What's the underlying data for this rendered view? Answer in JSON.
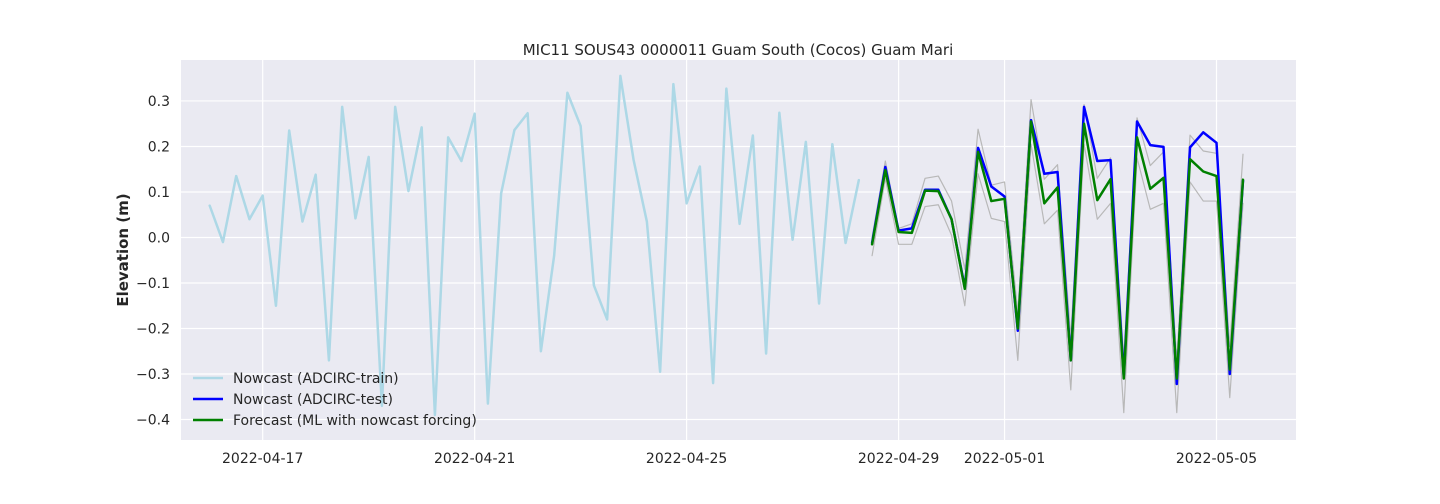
{
  "chart_data": {
    "type": "line",
    "title": "MIC11 SOUS43 0000011 Guam South (Cocos) Guam Mari",
    "xlabel": "",
    "ylabel": "Elevation (m)",
    "x_type": "date",
    "xlim": [
      "2022-04-15 11:00",
      "2022-05-06 12:00"
    ],
    "ylim": [
      -0.445,
      0.39
    ],
    "x_ticks": [
      "2022-04-17",
      "2022-04-21",
      "2022-04-25",
      "2022-04-29",
      "2022-05-01",
      "2022-05-05"
    ],
    "y_ticks": [
      0.3,
      0.2,
      0.1,
      0.0,
      -0.1,
      -0.2,
      -0.3,
      -0.4
    ],
    "y_tick_labels": [
      "0.3",
      "0.2",
      "0.1",
      "0.0",
      "−0.1",
      "−0.2",
      "−0.3",
      "−0.4"
    ],
    "grid": true,
    "legend_position": "lower-left",
    "series": [
      {
        "name": "Nowcast (ADCIRC-train)",
        "color": "#add8e6",
        "x": [
          "2022-04-16 00:00",
          "2022-04-16 06:00",
          "2022-04-16 12:00",
          "2022-04-16 18:00",
          "2022-04-17 00:00",
          "2022-04-17 06:00",
          "2022-04-17 12:00",
          "2022-04-17 18:00",
          "2022-04-18 00:00",
          "2022-04-18 06:00",
          "2022-04-18 12:00",
          "2022-04-18 18:00",
          "2022-04-19 00:00",
          "2022-04-19 06:00",
          "2022-04-19 12:00",
          "2022-04-19 18:00",
          "2022-04-20 00:00",
          "2022-04-20 06:00",
          "2022-04-20 12:00",
          "2022-04-20 18:00",
          "2022-04-21 00:00",
          "2022-04-21 06:00",
          "2022-04-21 12:00",
          "2022-04-21 18:00",
          "2022-04-22 00:00",
          "2022-04-22 06:00",
          "2022-04-22 12:00",
          "2022-04-22 18:00",
          "2022-04-23 00:00",
          "2022-04-23 06:00",
          "2022-04-23 12:00",
          "2022-04-23 18:00",
          "2022-04-24 00:00",
          "2022-04-24 06:00",
          "2022-04-24 12:00",
          "2022-04-24 18:00",
          "2022-04-25 00:00",
          "2022-04-25 06:00",
          "2022-04-25 12:00",
          "2022-04-25 18:00",
          "2022-04-26 00:00",
          "2022-04-26 06:00",
          "2022-04-26 12:00",
          "2022-04-26 18:00",
          "2022-04-27 00:00",
          "2022-04-27 06:00",
          "2022-04-27 12:00",
          "2022-04-27 18:00",
          "2022-04-28 00:00",
          "2022-04-28 06:00"
        ],
        "y": [
          0.07,
          -0.01,
          0.135,
          0.04,
          0.092,
          -0.15,
          0.235,
          0.035,
          0.138,
          -0.27,
          0.287,
          0.042,
          0.177,
          -0.37,
          0.287,
          0.102,
          0.242,
          -0.39,
          0.22,
          0.168,
          0.272,
          -0.365,
          0.097,
          0.236,
          0.273,
          -0.25,
          -0.04,
          0.318,
          0.245,
          -0.105,
          -0.18,
          0.355,
          0.17,
          0.035,
          -0.295,
          0.337,
          0.075,
          0.156,
          -0.32,
          0.327,
          0.03,
          0.224,
          -0.255,
          0.274,
          -0.005,
          0.21,
          -0.145,
          0.205,
          -0.012,
          0.126
        ]
      },
      {
        "name": "Nowcast (ADCIRC-test)",
        "color": "#0000ff",
        "x": [
          "2022-04-28 12:00",
          "2022-04-28 18:00",
          "2022-04-29 00:00",
          "2022-04-29 06:00",
          "2022-04-29 12:00",
          "2022-04-29 18:00",
          "2022-04-30 00:00",
          "2022-04-30 06:00",
          "2022-04-30 12:00",
          "2022-04-30 18:00",
          "2022-05-01 00:00",
          "2022-05-01 06:00",
          "2022-05-01 12:00",
          "2022-05-01 18:00",
          "2022-05-02 00:00",
          "2022-05-02 06:00",
          "2022-05-02 12:00",
          "2022-05-02 18:00",
          "2022-05-03 00:00",
          "2022-05-03 06:00",
          "2022-05-03 12:00",
          "2022-05-03 18:00",
          "2022-05-04 00:00",
          "2022-05-04 06:00",
          "2022-05-04 12:00",
          "2022-05-04 18:00",
          "2022-05-05 00:00",
          "2022-05-05 06:00",
          "2022-05-05 12:00"
        ],
        "y": [
          -0.012,
          0.155,
          0.015,
          0.02,
          0.105,
          0.105,
          0.04,
          -0.11,
          0.197,
          0.112,
          0.09,
          -0.205,
          0.258,
          0.14,
          0.144,
          -0.27,
          0.287,
          0.168,
          0.17,
          -0.305,
          0.255,
          0.203,
          0.199,
          -0.322,
          0.198,
          0.231,
          0.208,
          -0.3,
          0.125
        ]
      },
      {
        "name": "Forecast (ML with nowcast forcing)",
        "color": "#008000",
        "x": [
          "2022-04-28 12:00",
          "2022-04-28 18:00",
          "2022-04-29 00:00",
          "2022-04-29 06:00",
          "2022-04-29 12:00",
          "2022-04-29 18:00",
          "2022-04-30 00:00",
          "2022-04-30 06:00",
          "2022-04-30 12:00",
          "2022-04-30 18:00",
          "2022-05-01 00:00",
          "2022-05-01 06:00",
          "2022-05-01 12:00",
          "2022-05-01 18:00",
          "2022-05-02 00:00",
          "2022-05-02 06:00",
          "2022-05-02 12:00",
          "2022-05-02 18:00",
          "2022-05-03 00:00",
          "2022-05-03 06:00",
          "2022-05-03 12:00",
          "2022-05-03 18:00",
          "2022-05-04 00:00",
          "2022-05-04 06:00",
          "2022-05-04 12:00",
          "2022-05-04 18:00",
          "2022-05-05 00:00",
          "2022-05-05 06:00",
          "2022-05-05 12:00"
        ],
        "y": [
          -0.015,
          0.148,
          0.012,
          0.01,
          0.103,
          0.102,
          0.04,
          -0.113,
          0.188,
          0.08,
          0.085,
          -0.2,
          0.255,
          0.075,
          0.11,
          -0.27,
          0.25,
          0.082,
          0.128,
          -0.31,
          0.22,
          0.107,
          0.131,
          -0.31,
          0.172,
          0.145,
          0.135,
          -0.29,
          0.127
        ]
      },
      {
        "color": "#b8b8b8",
        "x": [
          "2022-04-28 12:00",
          "2022-04-28 18:00",
          "2022-04-29 00:00",
          "2022-04-29 06:00",
          "2022-04-29 12:00",
          "2022-04-29 18:00",
          "2022-04-30 00:00",
          "2022-04-30 06:00",
          "2022-04-30 12:00",
          "2022-04-30 18:00",
          "2022-05-01 00:00",
          "2022-05-01 06:00",
          "2022-05-01 12:00",
          "2022-05-01 18:00",
          "2022-05-02 00:00",
          "2022-05-02 06:00",
          "2022-05-02 12:00",
          "2022-05-02 18:00",
          "2022-05-03 00:00",
          "2022-05-03 06:00",
          "2022-05-03 12:00",
          "2022-05-03 18:00",
          "2022-05-04 00:00",
          "2022-05-04 06:00",
          "2022-05-04 12:00",
          "2022-05-04 18:00",
          "2022-05-05 00:00",
          "2022-05-05 06:00",
          "2022-05-05 12:00"
        ],
        "y": [
          0.0,
          0.168,
          0.02,
          0.03,
          0.13,
          0.135,
          0.08,
          -0.07,
          0.238,
          0.115,
          0.122,
          -0.165,
          0.303,
          0.128,
          0.16,
          -0.22,
          0.292,
          0.13,
          0.175,
          -0.265,
          0.263,
          0.158,
          0.188,
          -0.27,
          0.225,
          0.19,
          0.185,
          -0.24,
          0.183
        ]
      },
      {
        "color": "#b8b8b8",
        "x": [
          "2022-04-28 12:00",
          "2022-04-28 18:00",
          "2022-04-29 00:00",
          "2022-04-29 06:00",
          "2022-04-29 12:00",
          "2022-04-29 18:00",
          "2022-04-30 00:00",
          "2022-04-30 06:00",
          "2022-04-30 12:00",
          "2022-04-30 18:00",
          "2022-05-01 00:00",
          "2022-05-01 06:00",
          "2022-05-01 12:00",
          "2022-05-01 18:00",
          "2022-05-02 00:00",
          "2022-05-02 06:00",
          "2022-05-02 12:00",
          "2022-05-02 18:00",
          "2022-05-03 00:00",
          "2022-05-03 06:00",
          "2022-05-03 12:00",
          "2022-05-03 18:00",
          "2022-05-04 00:00",
          "2022-05-04 06:00",
          "2022-05-04 12:00",
          "2022-05-04 18:00",
          "2022-05-05 00:00",
          "2022-05-05 06:00",
          "2022-05-05 12:00"
        ],
        "y": [
          -0.04,
          0.13,
          -0.015,
          -0.015,
          0.068,
          0.072,
          0.005,
          -0.15,
          0.14,
          0.042,
          0.035,
          -0.27,
          0.205,
          0.03,
          0.06,
          -0.335,
          0.205,
          0.04,
          0.075,
          -0.385,
          0.175,
          0.062,
          0.075,
          -0.385,
          0.122,
          0.08,
          0.08,
          -0.352,
          0.075
        ]
      }
    ]
  }
}
